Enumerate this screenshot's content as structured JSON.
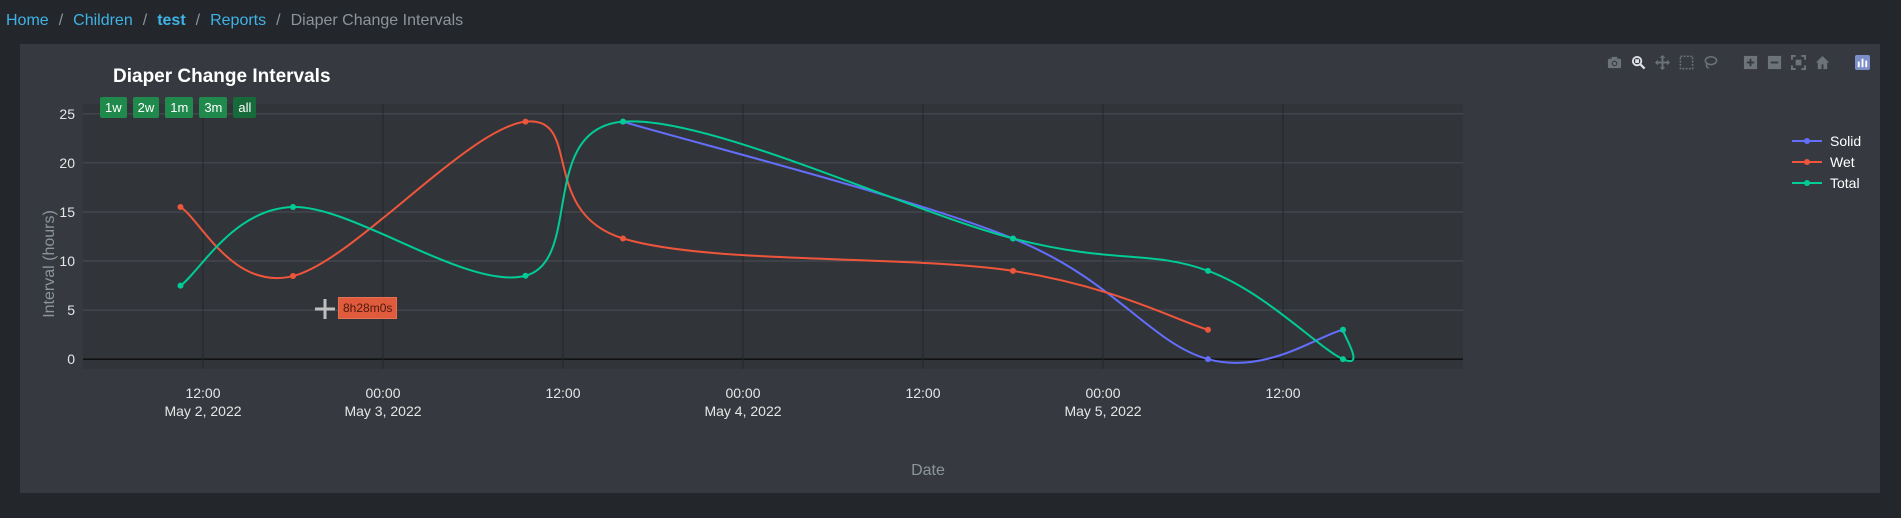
{
  "breadcrumb": {
    "home": "Home",
    "children": "Children",
    "child": "test",
    "reports": "Reports",
    "current": "Diaper Change Intervals"
  },
  "range_buttons": [
    "1w",
    "2w",
    "1m",
    "3m",
    "all"
  ],
  "tooltip": {
    "text": "8h28m0s"
  },
  "colors": {
    "solid": "#636efa",
    "wet": "#ef553b",
    "total": "#00cc96",
    "range_button": "#1f8a4c"
  },
  "modebar_icons": [
    "camera-icon",
    "zoom-icon",
    "pan-icon",
    "box-select-icon",
    "lasso-select-icon",
    "zoom-in-icon",
    "zoom-out-icon",
    "autoscale-icon",
    "reset-axes-icon",
    "plotly-logo-icon"
  ],
  "chart_data": {
    "type": "line",
    "title": "Diaper Change Intervals",
    "xlabel": "Date",
    "ylabel": "Interval (hours)",
    "ylim": [
      -1,
      26
    ],
    "xlim": [
      "2022-05-02 04:00",
      "2022-05-06 00:00"
    ],
    "yticks": [
      0,
      5,
      10,
      15,
      20,
      25
    ],
    "xticks": [
      {
        "at": "2022-05-02 12:00",
        "line1": "12:00",
        "line2": "May 2, 2022"
      },
      {
        "at": "2022-05-03 00:00",
        "line1": "00:00",
        "line2": "May 3, 2022"
      },
      {
        "at": "2022-05-03 12:00",
        "line1": "12:00",
        "line2": ""
      },
      {
        "at": "2022-05-04 00:00",
        "line1": "00:00",
        "line2": "May 4, 2022"
      },
      {
        "at": "2022-05-04 12:00",
        "line1": "12:00",
        "line2": ""
      },
      {
        "at": "2022-05-05 00:00",
        "line1": "00:00",
        "line2": "May 5, 2022"
      },
      {
        "at": "2022-05-05 12:00",
        "line1": "12:00",
        "line2": ""
      }
    ],
    "grid": true,
    "legend_position": "right",
    "series": [
      {
        "name": "Solid",
        "x": [
          "2022-05-03 16:00",
          "2022-05-04 18:00",
          "2022-05-05 07:00",
          "2022-05-05 16:00"
        ],
        "values": [
          24.2,
          12.3,
          0.0,
          3.0
        ]
      },
      {
        "name": "Wet",
        "x": [
          "2022-05-02 10:30",
          "2022-05-02 18:00",
          "2022-05-03 09:30",
          "2022-05-03 16:00",
          "2022-05-04 18:00",
          "2022-05-05 07:00"
        ],
        "values": [
          15.5,
          8.47,
          24.2,
          12.3,
          9.0,
          3.0
        ]
      },
      {
        "name": "Total",
        "x": [
          "2022-05-02 10:30",
          "2022-05-02 18:00",
          "2022-05-03 09:30",
          "2022-05-03 16:00",
          "2022-05-04 18:00",
          "2022-05-05 07:00",
          "2022-05-05 16:00",
          "2022-05-05 16:00"
        ],
        "values": [
          7.5,
          15.5,
          8.5,
          24.2,
          12.3,
          9.0,
          0.0,
          3.0
        ]
      }
    ]
  }
}
